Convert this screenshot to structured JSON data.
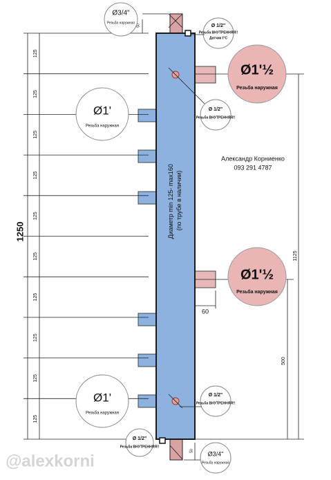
{
  "callouts": [
    {
      "size": "Ø3/4\"",
      "note": "Резьба наружная"
    },
    {
      "size": "Ø 1/2\"",
      "note": "Резьба ВНУТРЕННЯЯ!!",
      "extra": "Датчик t°C"
    },
    {
      "size": "Ø1'½",
      "note": "Резьба наружная"
    },
    {
      "size": "Ø 1/2\"",
      "note": "Резьба ВНУТРЕННЯЯ!!"
    },
    {
      "size": "Ø1'",
      "note": "Резьба наружная"
    },
    {
      "size": "Ø1'½",
      "note": "Резьба наружная"
    },
    {
      "size": "Ø1'",
      "note": "Резьба наружная"
    },
    {
      "size": "Ø 1/2\"",
      "note": "Резьба ВНУТРЕННЯЯ!!"
    },
    {
      "size": "Ø 1/2\"",
      "note": "Резьба ВНУТРЕННЯЯ!!"
    },
    {
      "size": "Ø3/4\"",
      "note": "Резьба наружная"
    }
  ],
  "author": {
    "name": "Александр Корниенко",
    "phone": "093 291 4787"
  },
  "body_label": [
    "Диаметр min 125- max160",
    "(по трубе в наличии)"
  ],
  "dimensions": {
    "total": "1250",
    "sections": [
      "125",
      "125",
      "125",
      "125",
      "125",
      "125",
      "125",
      "125",
      "125",
      "125"
    ],
    "right_upper": "1125",
    "right_lower": "500",
    "nozzle": "60",
    "top_pipe": "50",
    "bottom_pipe": "50"
  },
  "watermark": "@alexkorni"
}
